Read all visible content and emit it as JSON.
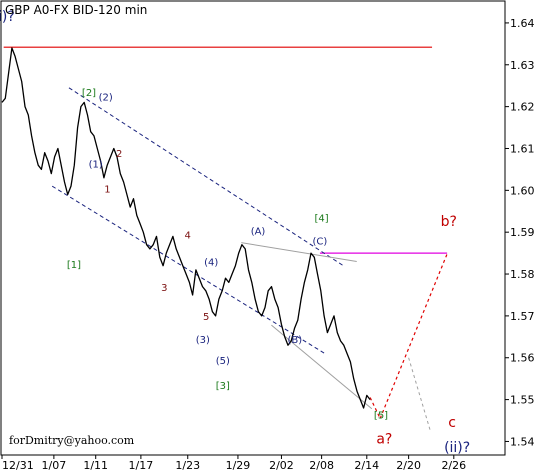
{
  "chart_data": {
    "type": "line",
    "title": "GBP A0-FX BID-120 min",
    "credit": "forDmitry@yahoo.com",
    "ylim": [
      1.537,
      1.645
    ],
    "yticks": [
      "1.64",
      "1.63",
      "1.62",
      "1.61",
      "1.60",
      "1.59",
      "1.58",
      "1.57",
      "1.56",
      "1.55",
      "1.54"
    ],
    "ytick_values": [
      1.64,
      1.63,
      1.62,
      1.61,
      1.6,
      1.59,
      1.58,
      1.57,
      1.56,
      1.55,
      1.54
    ],
    "xticks": [
      "12/31",
      "1/07",
      "1/11",
      "1/17",
      "1/23",
      "1/29",
      "2/02",
      "2/08",
      "2/14",
      "2/20",
      "2/26"
    ],
    "x_range_bars": [
      0,
      600
    ],
    "xtick_bars": [
      0,
      62,
      112,
      166,
      222,
      282,
      334,
      382,
      436,
      486,
      540
    ],
    "series": [
      {
        "values": [
          1.621,
          1.622,
          1.628,
          1.634,
          1.632,
          1.629,
          1.626,
          1.62,
          1.618,
          1.613,
          1.609,
          1.606,
          1.605,
          1.609,
          1.607,
          1.604,
          1.608,
          1.61,
          1.606,
          1.602,
          1.599,
          1.601,
          1.606,
          1.615,
          1.62,
          1.621,
          1.618,
          1.614,
          1.613,
          1.61,
          1.607,
          1.603,
          1.606,
          1.608,
          1.61,
          1.608,
          1.604,
          1.602,
          1.599,
          1.596,
          1.598,
          1.594,
          1.592,
          1.59,
          1.587,
          1.586,
          1.587,
          1.589,
          1.584,
          1.582,
          1.585,
          1.587,
          1.589,
          1.586,
          1.584,
          1.582,
          1.58,
          1.578,
          1.575,
          1.581,
          1.579,
          1.577,
          1.576,
          1.574,
          1.571,
          1.57,
          1.574,
          1.576,
          1.579,
          1.578,
          1.58,
          1.582,
          1.585,
          1.587,
          1.586,
          1.581,
          1.578,
          1.574,
          1.571,
          1.57,
          1.572,
          1.576,
          1.577,
          1.574,
          1.572,
          1.568,
          1.565,
          1.563,
          1.564,
          1.567,
          1.569,
          1.574,
          1.578,
          1.581,
          1.585,
          1.584,
          1.58,
          1.576,
          1.57,
          1.566,
          1.568,
          1.57,
          1.566,
          1.564,
          1.563,
          1.561,
          1.559,
          1.555,
          1.552,
          1.55,
          1.548,
          1.551,
          1.55
        ]
      }
    ],
    "elliott_labels": [
      {
        "text": "(i)?",
        "x": 2,
        "y": 1.6405,
        "color": "#1a237e",
        "size": 14
      },
      {
        "text": "[2]",
        "x": 104,
        "y": 1.6225,
        "color": "#1b7a1b",
        "size": 10
      },
      {
        "text": "(2)",
        "x": 124,
        "y": 1.6215,
        "color": "#1a237e",
        "size": 10
      },
      {
        "text": "(1)",
        "x": 112,
        "y": 1.6055,
        "color": "#1a237e",
        "size": 10
      },
      {
        "text": "2",
        "x": 140,
        "y": 1.608,
        "color": "#7b1010",
        "size": 10
      },
      {
        "text": "1",
        "x": 126,
        "y": 1.5995,
        "color": "#7b1010",
        "size": 10
      },
      {
        "text": "[1]",
        "x": 86,
        "y": 1.5815,
        "color": "#1b7a1b",
        "size": 10
      },
      {
        "text": "4",
        "x": 222,
        "y": 1.5885,
        "color": "#7b1010",
        "size": 10
      },
      {
        "text": "(4)",
        "x": 250,
        "y": 1.582,
        "color": "#1a237e",
        "size": 10
      },
      {
        "text": "3",
        "x": 194,
        "y": 1.576,
        "color": "#7b1010",
        "size": 10
      },
      {
        "text": "5",
        "x": 244,
        "y": 1.569,
        "color": "#7b1010",
        "size": 10
      },
      {
        "text": "(3)",
        "x": 240,
        "y": 1.5635,
        "color": "#1a237e",
        "size": 10
      },
      {
        "text": "(5)",
        "x": 264,
        "y": 1.5585,
        "color": "#1a237e",
        "size": 10
      },
      {
        "text": "[3]",
        "x": 264,
        "y": 1.5525,
        "color": "#1b7a1b",
        "size": 10
      },
      {
        "text": "(A)",
        "x": 306,
        "y": 1.5895,
        "color": "#1a237e",
        "size": 10
      },
      {
        "text": "[4]",
        "x": 382,
        "y": 1.5925,
        "color": "#1b7a1b",
        "size": 10
      },
      {
        "text": "(C)",
        "x": 380,
        "y": 1.587,
        "color": "#1a237e",
        "size": 10
      },
      {
        "text": "(B)",
        "x": 350,
        "y": 1.5635,
        "color": "#1a237e",
        "size": 10
      },
      {
        "text": "[5]",
        "x": 453,
        "y": 1.5455,
        "color": "#1b7a1b",
        "size": 10
      },
      {
        "text": "a?",
        "x": 457,
        "y": 1.5395,
        "color": "#c00000",
        "size": 14
      },
      {
        "text": "b?",
        "x": 534,
        "y": 1.5915,
        "color": "#c00000",
        "size": 14
      },
      {
        "text": "c",
        "x": 538,
        "y": 1.5435,
        "color": "#c00000",
        "size": 14
      },
      {
        "text": "(ii)?",
        "x": 544,
        "y": 1.5375,
        "color": "#1a237e",
        "size": 14
      }
    ],
    "lines": [
      {
        "name": "red-horizontal-level",
        "x1": 2,
        "y1": 1.6342,
        "x2": 514,
        "y2": 1.6342,
        "color": "#e00000",
        "dash": "",
        "width": 1.2
      },
      {
        "name": "magenta-horizontal-level",
        "x1": 380,
        "y1": 1.585,
        "x2": 532,
        "y2": 1.585,
        "color": "#e000e0",
        "dash": "",
        "width": 1.2
      },
      {
        "name": "blue-upper-channel",
        "x1": 80,
        "y1": 1.6245,
        "x2": 408,
        "y2": 1.582,
        "color": "#1a237e",
        "dash": "4,3",
        "width": 1
      },
      {
        "name": "blue-lower-channel",
        "x1": 60,
        "y1": 1.601,
        "x2": 386,
        "y2": 1.561,
        "color": "#1a237e",
        "dash": "4,3",
        "width": 1
      },
      {
        "name": "gray-triangle-upper",
        "x1": 286,
        "y1": 1.5875,
        "x2": 424,
        "y2": 1.583,
        "color": "#a0a0a0",
        "dash": "",
        "width": 1
      },
      {
        "name": "gray-triangle-lower",
        "x1": 322,
        "y1": 1.5678,
        "x2": 442,
        "y2": 1.5478,
        "color": "#a0a0a0",
        "dash": "",
        "width": 1
      },
      {
        "name": "red-forecast-down",
        "x1": 440,
        "y1": 1.5505,
        "x2": 452,
        "y2": 1.5455,
        "color": "#e00000",
        "dash": "3,3",
        "width": 1.2
      },
      {
        "name": "red-forecast-up",
        "x1": 452,
        "y1": 1.5455,
        "x2": 532,
        "y2": 1.5848,
        "color": "#e00000",
        "dash": "3,3",
        "width": 1.2
      },
      {
        "name": "gray-forecast-down",
        "x1": 486,
        "y1": 1.56,
        "x2": 512,
        "y2": 1.5425,
        "color": "#a0a0a0",
        "dash": "3,3",
        "width": 1
      }
    ]
  }
}
